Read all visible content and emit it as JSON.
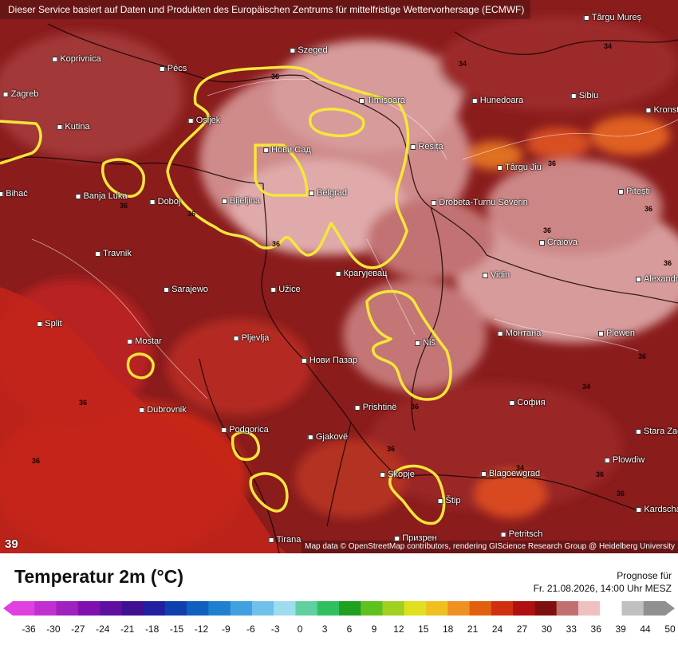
{
  "map": {
    "attribution_top": "Dieser Service basiert auf Daten und Produkten des Europäischen Zentrums für mittelfristige Wettervorhersage (ECMWF)",
    "attribution_bottom": "Map data © OpenStreetMap contributors, rendering GIScience Research Group @ Heidelberg University",
    "corner_value": "39",
    "cities": [
      {
        "name": "Târgu Mureș"
      },
      {
        "name": "Koprivnica"
      },
      {
        "name": "Pécs"
      },
      {
        "name": "Szeged"
      },
      {
        "name": "Zagreb"
      },
      {
        "name": "Timișoara"
      },
      {
        "name": "Hunedoara"
      },
      {
        "name": "Sibiu"
      },
      {
        "name": "Osijek"
      },
      {
        "name": "Kutina"
      },
      {
        "name": "Нови Сад"
      },
      {
        "name": "Reșița"
      },
      {
        "name": "Târgu Jiu"
      },
      {
        "name": "Banja Luka"
      },
      {
        "name": "Doboj"
      },
      {
        "name": "Bijeljina"
      },
      {
        "name": "Belgrad"
      },
      {
        "name": "Drobeta-Turnu Severin"
      },
      {
        "name": "Pitești"
      },
      {
        "name": "Craiova"
      },
      {
        "name": "Bihać"
      },
      {
        "name": "Travnik"
      },
      {
        "name": "Крагујевац"
      },
      {
        "name": "Vidin"
      },
      {
        "name": "Alexandria"
      },
      {
        "name": "Sarajewo"
      },
      {
        "name": "Užice"
      },
      {
        "name": "Split"
      },
      {
        "name": "Mostar"
      },
      {
        "name": "Pljevlja"
      },
      {
        "name": "Niš"
      },
      {
        "name": "Монтана"
      },
      {
        "name": "Plewen"
      },
      {
        "name": "Нови Пазар"
      },
      {
        "name": "Dubrovnik"
      },
      {
        "name": "Prishtinë"
      },
      {
        "name": "София"
      },
      {
        "name": "Podgorica"
      },
      {
        "name": "Gjakovë"
      },
      {
        "name": "Stara Zagora"
      },
      {
        "name": "Plowdiw"
      },
      {
        "name": "Skopje"
      },
      {
        "name": "Blagoewgrad"
      },
      {
        "name": "Štip"
      },
      {
        "name": "Kardschali"
      },
      {
        "name": "Petritsch"
      },
      {
        "name": "Tirana"
      },
      {
        "name": "Призрен"
      },
      {
        "name": "Kronstadt"
      }
    ],
    "isotherm_labels": [
      "36",
      "34",
      "34",
      "36",
      "36",
      "36",
      "36",
      "36",
      "36",
      "34",
      "36",
      "36",
      "36",
      "36",
      "34",
      "36",
      "36",
      "36",
      "36"
    ]
  },
  "legend": {
    "title": "Temperatur 2m (°C)",
    "forecast_line1": "Prognose für",
    "forecast_line2": "Fr. 21.08.2026, 14:00 Uhr MESZ",
    "ticks": [
      "-36",
      "-30",
      "-27",
      "-24",
      "-21",
      "-18",
      "-15",
      "-12",
      "-9",
      "-6",
      "-3",
      "0",
      "3",
      "6",
      "9",
      "12",
      "15",
      "18",
      "21",
      "24",
      "27",
      "30",
      "33",
      "36",
      "39",
      "44",
      "50"
    ],
    "colors": [
      "#e040e0",
      "#c030d0",
      "#a020c0",
      "#8010b0",
      "#6010a0",
      "#401090",
      "#2020a0",
      "#1040b0",
      "#1060c0",
      "#2080d0",
      "#40a0e0",
      "#70c0ec",
      "#a0dcf0",
      "#60d0a0",
      "#30c060",
      "#20a020",
      "#60c020",
      "#a0d020",
      "#e0e020",
      "#f0c020",
      "#f09020",
      "#e06010",
      "#d03010",
      "#b01010",
      "#801010",
      "#c07070",
      "#f0c0c0",
      "#ffffff",
      "#c0c0c0",
      "#909090"
    ]
  }
}
